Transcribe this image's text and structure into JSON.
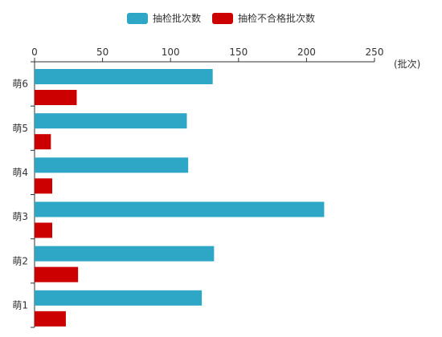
{
  "chart_data": {
    "type": "bar",
    "orientation": "horizontal",
    "categories": [
      "萌1",
      "萌2",
      "萌3",
      "萌4",
      "萌5",
      "萌6"
    ],
    "series": [
      {
        "name": "抽检批次数",
        "color": "#2ea7c6",
        "values": [
          123,
          132,
          213,
          113,
          112,
          131
        ]
      },
      {
        "name": "抽检不合格批次数",
        "color": "#cc0000",
        "values": [
          23,
          32,
          13,
          13,
          12,
          31
        ]
      }
    ],
    "xaxis": {
      "position": "top",
      "min": 0,
      "max": 250,
      "ticks": [
        0,
        50,
        100,
        150,
        200,
        250
      ],
      "unit": "(批次)"
    },
    "legend_position": "top-center",
    "grid": false
  }
}
